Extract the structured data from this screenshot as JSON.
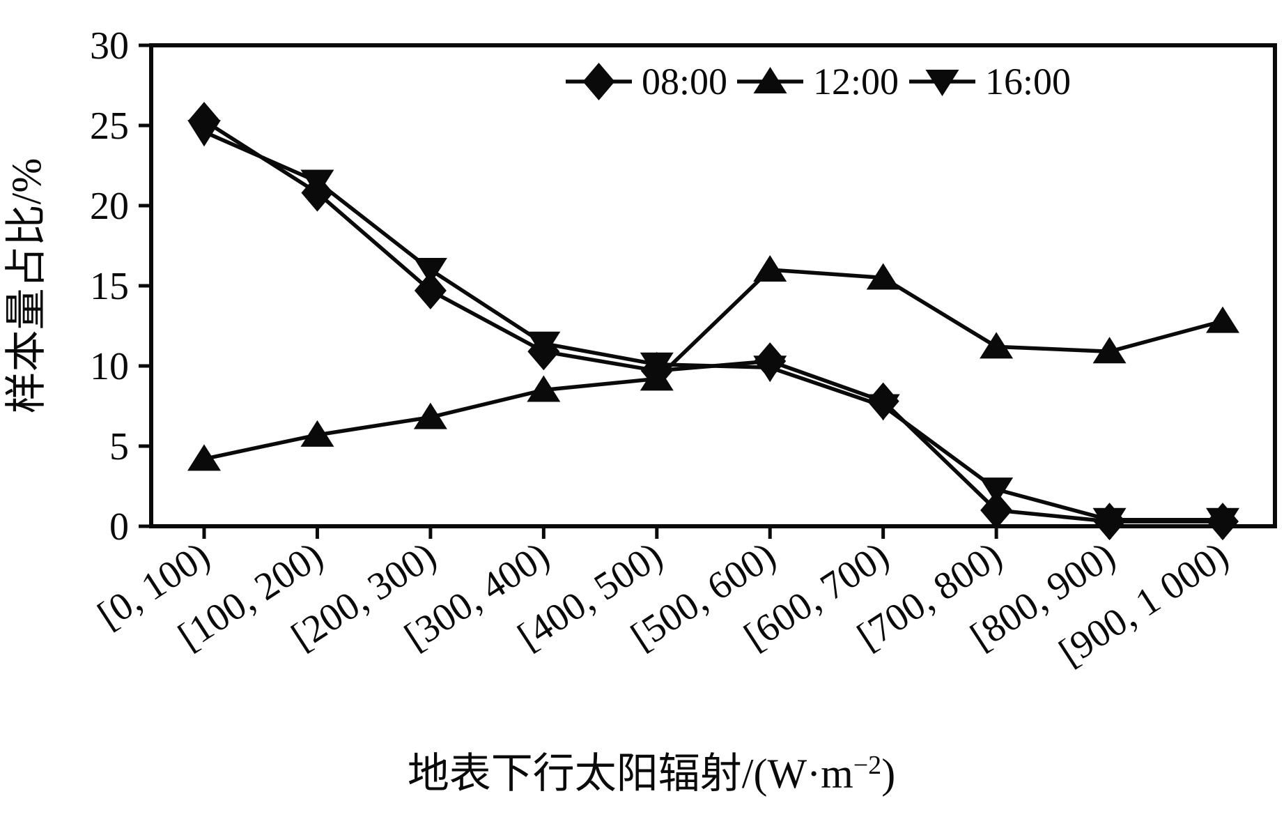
{
  "chart_data": {
    "type": "line",
    "title": "",
    "xlabel": "地表下行太阳辐射/(W·m⁻²)",
    "ylabel": "样本量占比/%",
    "ylim": [
      0,
      30
    ],
    "yticks": [
      0,
      5,
      10,
      15,
      20,
      25,
      30
    ],
    "grid": false,
    "legend_position": "top-right-inside",
    "categories": [
      "[0, 100)",
      "[100, 200)",
      "[200, 300)",
      "[300, 400)",
      "[400, 500)",
      "[500, 600)",
      "[600, 700)",
      "[700, 800)",
      "[800, 900)",
      "[900, 1 000)"
    ],
    "series": [
      {
        "name": "08:00",
        "marker": "diamond",
        "values": [
          25.3,
          20.8,
          14.7,
          10.9,
          9.7,
          10.3,
          7.8,
          1.0,
          0.3,
          0.3
        ]
      },
      {
        "name": "12:00",
        "marker": "triangle-up",
        "values": [
          4.2,
          5.7,
          6.8,
          8.5,
          9.2,
          16.0,
          15.5,
          11.2,
          10.9,
          12.8
        ]
      },
      {
        "name": "16:00",
        "marker": "triangle-down",
        "values": [
          24.6,
          21.5,
          16.0,
          11.4,
          10.1,
          9.9,
          7.5,
          2.3,
          0.4,
          0.4
        ]
      }
    ],
    "colors": {
      "line": "#0a0a0a",
      "background": "#ffffff"
    }
  }
}
